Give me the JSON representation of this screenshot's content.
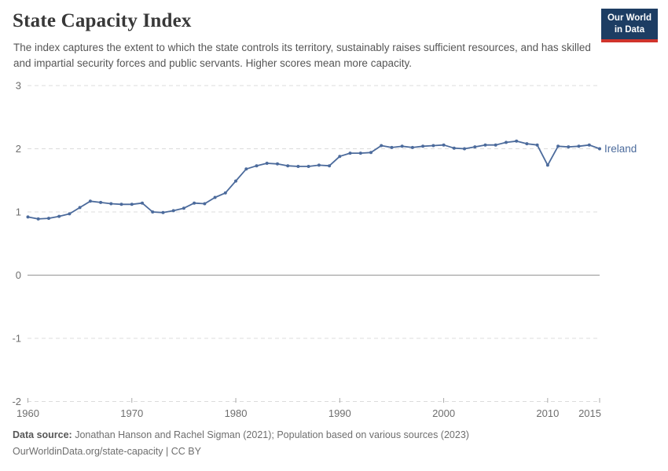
{
  "header": {
    "logo": {
      "line1": "Our World",
      "line2": "in Data"
    }
  },
  "colors": {
    "logo_bg": "#1d3d63",
    "logo_bar": "#d0342c",
    "line": "#4C6B9C",
    "grid": "#dcdcdc",
    "zero_line": "#949494",
    "tick_mark": "#a9a9a9",
    "text_muted": "#6e6e6e"
  },
  "chart_data": {
    "type": "line",
    "title": "State Capacity Index",
    "subtitle": "The index captures the extent to which the state controls its territory, sustainably raises sufficient resources, and has skilled and impartial security forces and public servants. Higher scores mean more capacity.",
    "xlabel": "",
    "ylabel": "",
    "xlim": [
      1960,
      2015
    ],
    "ylim": [
      -2,
      3
    ],
    "x_ticks": [
      1960,
      1970,
      1980,
      1990,
      2000,
      2010,
      2015
    ],
    "y_ticks": [
      3,
      2,
      1,
      0,
      -1,
      -2
    ],
    "grid": "horizontal dashed gridlines, solid zero line",
    "legend": "line-end label",
    "x": [
      1960,
      1961,
      1962,
      1963,
      1964,
      1965,
      1966,
      1967,
      1968,
      1969,
      1970,
      1971,
      1972,
      1973,
      1974,
      1975,
      1976,
      1977,
      1978,
      1979,
      1980,
      1981,
      1982,
      1983,
      1984,
      1985,
      1986,
      1987,
      1988,
      1989,
      1990,
      1991,
      1992,
      1993,
      1994,
      1995,
      1996,
      1997,
      1998,
      1999,
      2000,
      2001,
      2002,
      2003,
      2004,
      2005,
      2006,
      2007,
      2008,
      2009,
      2010,
      2011,
      2012,
      2013,
      2014,
      2015
    ],
    "series": [
      {
        "name": "Ireland",
        "color": "#4C6B9C",
        "values": [
          0.92,
          0.89,
          0.9,
          0.93,
          0.97,
          1.07,
          1.17,
          1.15,
          1.13,
          1.12,
          1.12,
          1.14,
          1.0,
          0.99,
          1.02,
          1.06,
          1.14,
          1.13,
          1.23,
          1.3,
          1.49,
          1.68,
          1.73,
          1.77,
          1.76,
          1.73,
          1.72,
          1.72,
          1.74,
          1.73,
          1.88,
          1.93,
          1.93,
          1.94,
          2.05,
          2.02,
          2.04,
          2.02,
          2.04,
          2.05,
          2.06,
          2.01,
          2.0,
          2.03,
          2.06,
          2.06,
          2.1,
          2.12,
          2.08,
          2.06,
          1.74,
          2.04,
          2.03,
          2.04,
          2.06,
          2.0
        ]
      }
    ]
  },
  "footer": {
    "data_source_label": "Data source:",
    "data_source_text": "Jonathan Hanson and Rachel Sigman (2021); Population based on various sources (2023)",
    "url": "OurWorldinData.org/state-capacity",
    "separator": "|",
    "license": "CC BY"
  }
}
